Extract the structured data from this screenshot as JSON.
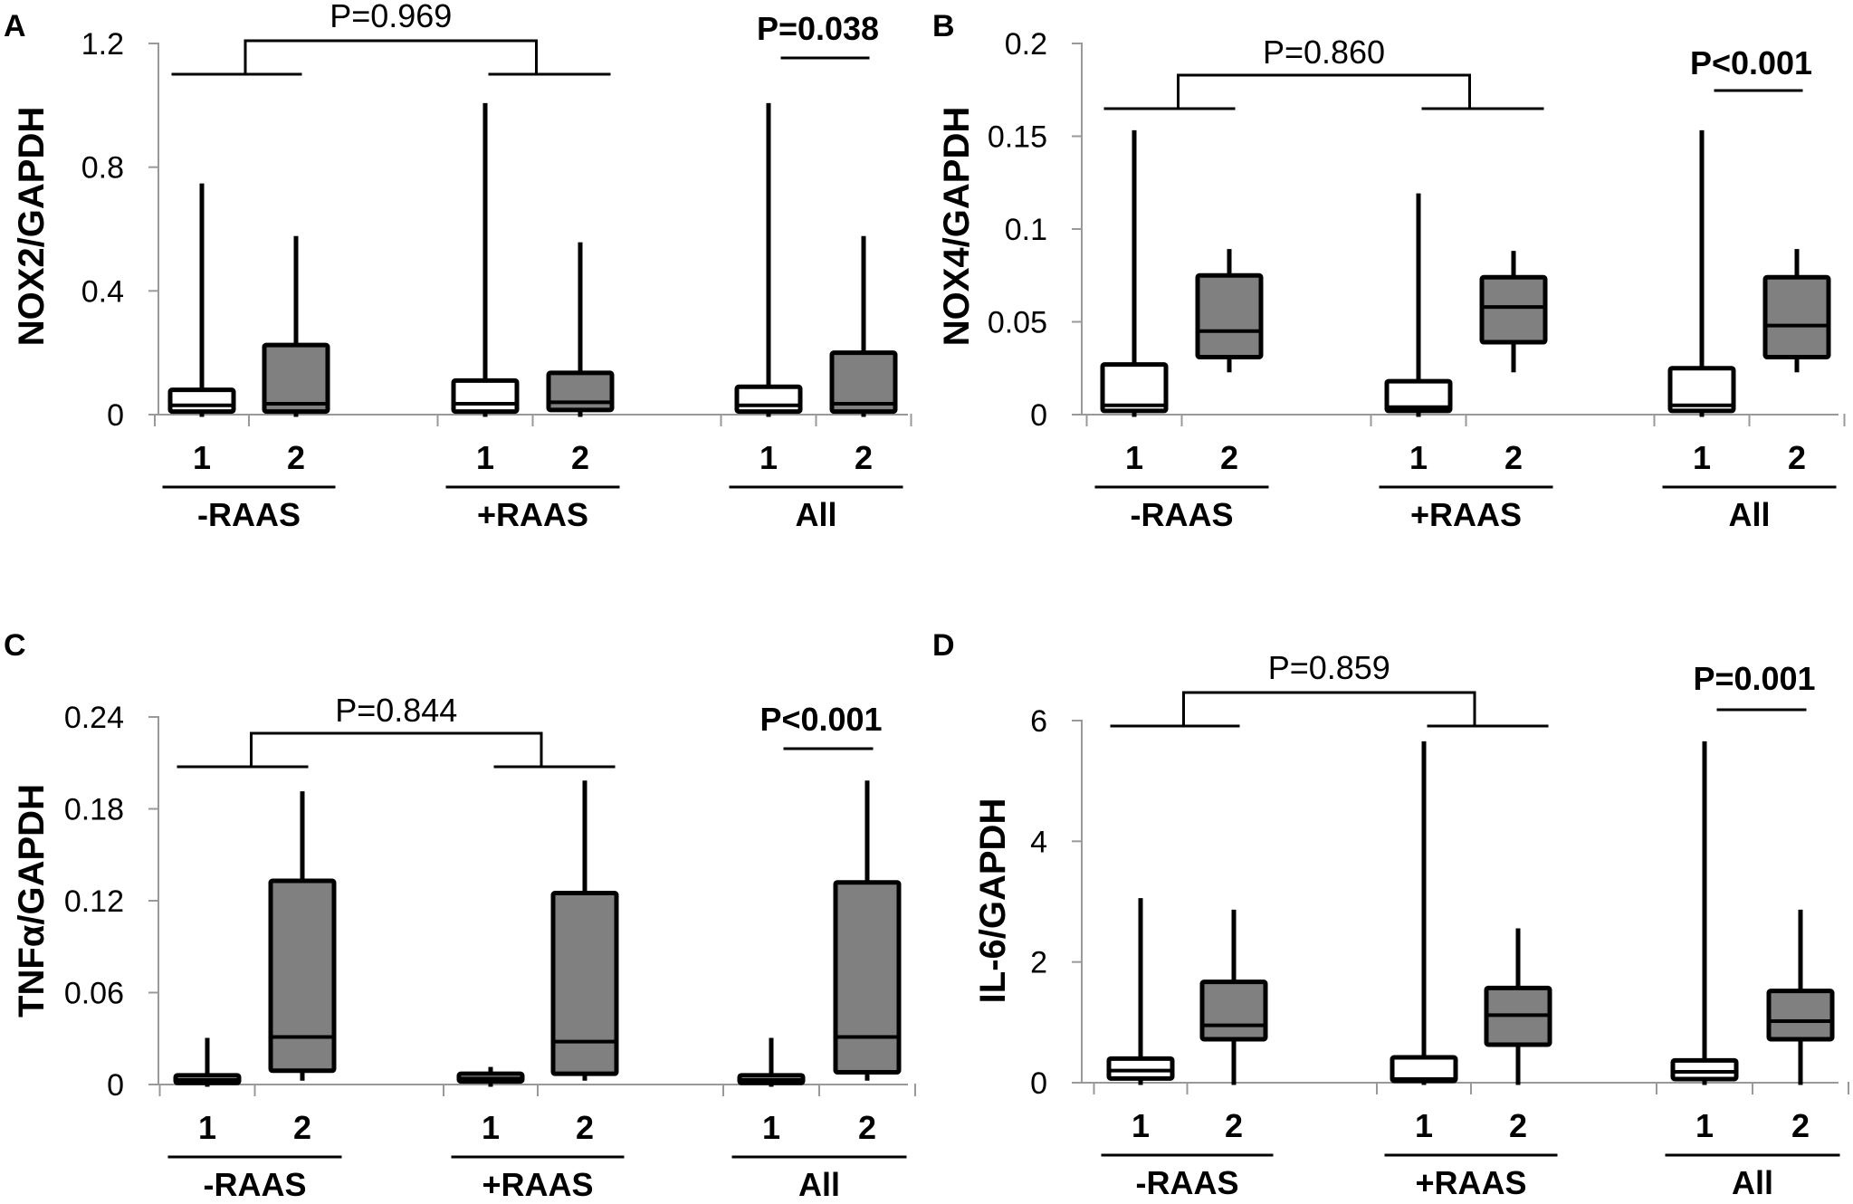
{
  "colors": {
    "group1": "#ffffff",
    "group2": "#808080",
    "stroke": "#000000",
    "axis": "#999999"
  },
  "chart_data": [
    {
      "panel": "A",
      "type": "box",
      "ylabel": "NOX2/GAPDH",
      "ylim": [
        0,
        1.2
      ],
      "yticks": [
        0,
        0.4,
        0.8,
        1.2
      ],
      "ytick_labels": [
        "0",
        "0.4",
        "0.8",
        "1.2"
      ],
      "groups": [
        {
          "label": "-RAAS",
          "boxes": [
            {
              "x_label": "1",
              "min": 0.0,
              "q1": 0.01,
              "median": 0.03,
              "q3": 0.08,
              "max": 0.74
            },
            {
              "x_label": "2",
              "min": 0.0,
              "q1": 0.01,
              "median": 0.035,
              "q3": 0.225,
              "max": 0.57
            }
          ]
        },
        {
          "label": "+RAAS",
          "boxes": [
            {
              "x_label": "1",
              "min": 0.0,
              "q1": 0.01,
              "median": 0.035,
              "q3": 0.11,
              "max": 1.0
            },
            {
              "x_label": "2",
              "min": 0.0,
              "q1": 0.015,
              "median": 0.04,
              "q3": 0.135,
              "max": 0.55
            }
          ]
        },
        {
          "label": "All",
          "boxes": [
            {
              "x_label": "1",
              "min": 0.0,
              "q1": 0.01,
              "median": 0.03,
              "q3": 0.09,
              "max": 1.0
            },
            {
              "x_label": "2",
              "min": 0.0,
              "q1": 0.01,
              "median": 0.035,
              "q3": 0.2,
              "max": 0.57
            }
          ]
        }
      ],
      "comparison_p": "P=0.969",
      "all_p": "P=0.038"
    },
    {
      "panel": "B",
      "type": "box",
      "ylabel": "NOX4/GAPDH",
      "ylim": [
        0,
        0.2
      ],
      "yticks": [
        0,
        0.05,
        0.1,
        0.15,
        0.2
      ],
      "ytick_labels": [
        "0",
        "0.05",
        "0.1",
        "0.15",
        "0.2"
      ],
      "groups": [
        {
          "label": "-RAAS",
          "boxes": [
            {
              "x_label": "1",
              "min": 0.0,
              "q1": 0.002,
              "median": 0.005,
              "q3": 0.027,
              "max": 0.152
            },
            {
              "x_label": "2",
              "min": 0.024,
              "q1": 0.031,
              "median": 0.045,
              "q3": 0.075,
              "max": 0.088
            }
          ]
        },
        {
          "label": "+RAAS",
          "boxes": [
            {
              "x_label": "1",
              "min": 0.0,
              "q1": 0.002,
              "median": 0.004,
              "q3": 0.018,
              "max": 0.118
            },
            {
              "x_label": "2",
              "min": 0.024,
              "q1": 0.039,
              "median": 0.058,
              "q3": 0.074,
              "max": 0.087
            }
          ]
        },
        {
          "label": "All",
          "boxes": [
            {
              "x_label": "1",
              "min": 0.0,
              "q1": 0.002,
              "median": 0.005,
              "q3": 0.025,
              "max": 0.152
            },
            {
              "x_label": "2",
              "min": 0.024,
              "q1": 0.031,
              "median": 0.048,
              "q3": 0.074,
              "max": 0.088
            }
          ]
        }
      ],
      "comparison_p": "P=0.860",
      "all_p": "P<0.001"
    },
    {
      "panel": "C",
      "type": "box",
      "ylabel": "TNFα/GAPDH",
      "ylim": [
        0,
        0.24
      ],
      "yticks": [
        0,
        0.06,
        0.12,
        0.18,
        0.24
      ],
      "ytick_labels": [
        "0",
        "0.06",
        "0.12",
        "0.18",
        "0.24"
      ],
      "groups": [
        {
          "label": "-RAAS",
          "boxes": [
            {
              "x_label": "1",
              "min": 0.0,
              "q1": 0.001,
              "median": 0.003,
              "q3": 0.006,
              "max": 0.029
            },
            {
              "x_label": "2",
              "min": 0.004,
              "q1": 0.009,
              "median": 0.031,
              "q3": 0.133,
              "max": 0.19
            }
          ]
        },
        {
          "label": "+RAAS",
          "boxes": [
            {
              "x_label": "1",
              "min": 0.0,
              "q1": 0.002,
              "median": 0.004,
              "q3": 0.007,
              "max": 0.01
            },
            {
              "x_label": "2",
              "min": 0.004,
              "q1": 0.007,
              "median": 0.028,
              "q3": 0.125,
              "max": 0.197
            }
          ]
        },
        {
          "label": "All",
          "boxes": [
            {
              "x_label": "1",
              "min": 0.0,
              "q1": 0.001,
              "median": 0.003,
              "q3": 0.006,
              "max": 0.029
            },
            {
              "x_label": "2",
              "min": 0.004,
              "q1": 0.008,
              "median": 0.031,
              "q3": 0.132,
              "max": 0.197
            }
          ]
        }
      ],
      "comparison_p": "P=0.844",
      "all_p": "P<0.001"
    },
    {
      "panel": "D",
      "type": "box",
      "ylabel": "IL-6/GAPDH",
      "ylim": [
        0,
        6
      ],
      "yticks": [
        0,
        2,
        4,
        6
      ],
      "ytick_labels": [
        "0",
        "2",
        "4",
        "6"
      ],
      "groups": [
        {
          "label": "-RAAS",
          "boxes": [
            {
              "x_label": "1",
              "min": 0.0,
              "q1": 0.07,
              "median": 0.2,
              "q3": 0.4,
              "max": 3.02
            },
            {
              "x_label": "2",
              "min": 0.0,
              "q1": 0.72,
              "median": 0.95,
              "q3": 1.67,
              "max": 2.83
            }
          ]
        },
        {
          "label": "+RAAS",
          "boxes": [
            {
              "x_label": "1",
              "min": 0.0,
              "q1": 0.03,
              "median": 0.06,
              "q3": 0.42,
              "max": 5.62
            },
            {
              "x_label": "2",
              "min": 0.0,
              "q1": 0.63,
              "median": 1.12,
              "q3": 1.57,
              "max": 2.52
            }
          ]
        },
        {
          "label": "All",
          "boxes": [
            {
              "x_label": "1",
              "min": 0.0,
              "q1": 0.06,
              "median": 0.18,
              "q3": 0.37,
              "max": 5.62
            },
            {
              "x_label": "2",
              "min": 0.0,
              "q1": 0.72,
              "median": 1.02,
              "q3": 1.52,
              "max": 2.83
            }
          ]
        }
      ],
      "comparison_p": "P=0.859",
      "all_p": "P=0.001"
    }
  ]
}
